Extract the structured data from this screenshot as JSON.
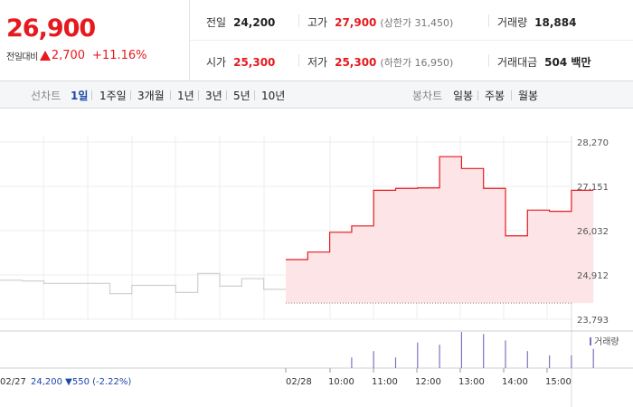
{
  "summary": {
    "price": "26,900",
    "change_label": "전일대비",
    "change_amount": "2,700",
    "change_percent": "+11.16%",
    "prev_close": {
      "label": "전일",
      "value": "24,200"
    },
    "high": {
      "label": "고가",
      "value": "27,900",
      "limit_label": "(상한가 31,450)"
    },
    "volume": {
      "label": "거래량",
      "value": "18,884"
    },
    "open": {
      "label": "시가",
      "value": "25,300"
    },
    "low": {
      "label": "저가",
      "value": "25,300",
      "limit_label": "(하한가 16,950)"
    },
    "trade_value": {
      "label": "거래대금",
      "value": "504 백만"
    }
  },
  "toolbar": {
    "line_label": "선차트",
    "line_periods": [
      "1일",
      "1주일",
      "3개월",
      "1년",
      "3년",
      "5년",
      "10년"
    ],
    "active_period": "1일",
    "candle_label": "봉차트",
    "candle_periods": [
      "일봉",
      "주봉",
      "월봉"
    ]
  },
  "colors": {
    "up": "#e6191e",
    "down": "#1d47a7",
    "prev_line": "#cfcfcf",
    "area_fill": "#fde4e6",
    "volume_bar": "#7b73c2"
  },
  "chart_data": {
    "type": "line",
    "title": "",
    "y_ticks": [
      "28,270",
      "27,151",
      "26,032",
      "24,912",
      "23,793"
    ],
    "ylim": [
      23793,
      28270
    ],
    "volume_legend": "거래량",
    "x_labels": [
      "02/28",
      "10:00",
      "11:00",
      "12:00",
      "13:00",
      "14:00",
      "15:00"
    ],
    "prev_day": {
      "date": "02/27",
      "close": "24,200",
      "change": "▼550 (-2.22%)",
      "x": [
        0,
        1,
        2,
        3,
        4,
        5,
        6,
        7,
        8,
        9,
        10,
        11,
        12,
        13
      ],
      "values": [
        24780,
        24760,
        24700,
        24700,
        24700,
        24440,
        24650,
        24650,
        24470,
        24950,
        24630,
        24820,
        24550,
        24550
      ]
    },
    "today": {
      "open_ref": 24200,
      "x": [
        0,
        1,
        2,
        3,
        4,
        5,
        6,
        7,
        8,
        9,
        10,
        11,
        12,
        13
      ],
      "values": [
        25300,
        25490,
        25990,
        26150,
        27050,
        27100,
        27110,
        27900,
        27600,
        27100,
        25900,
        26550,
        26520,
        27050
      ],
      "volumes": [
        0,
        0,
        25,
        40,
        25,
        60,
        55,
        85,
        80,
        65,
        40,
        30,
        30,
        45
      ]
    }
  }
}
